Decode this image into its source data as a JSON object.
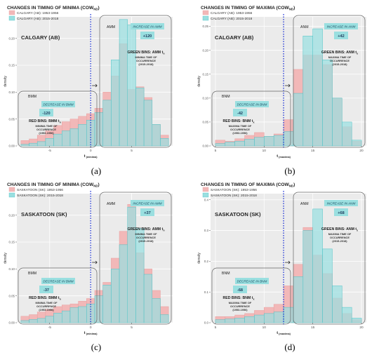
{
  "chart_data": [
    {
      "type": "bar",
      "panel_label": "(a)",
      "title": "CHANGES IN TIMING OF MINIMA (COW",
      "title_sub": "ND",
      "title_close": ")",
      "station": "CALGARY (AB)",
      "xlabel": "t",
      "xlabel_sub": "(minima)",
      "ylabel": "density",
      "xlim": [
        -9,
        10
      ],
      "ylim": [
        0,
        0.24
      ],
      "xticks": [
        -5,
        0,
        5
      ],
      "yticks": [
        0.0,
        0.05,
        0.1,
        0.15,
        0.2
      ],
      "ytick_labels": [
        "0.00",
        "0.05",
        "0.10",
        "0.15",
        "0.20"
      ],
      "vline": 0,
      "bin_start": -8.5,
      "bin_width": 1,
      "series": [
        {
          "name": "CALGARY (AB): 1953-1956",
          "color": "#f2b8b8",
          "values": [
            0.01,
            0.013,
            0.02,
            0.028,
            0.038,
            0.045,
            0.05,
            0.055,
            0.06,
            0.07,
            0.1,
            0.13,
            0.19,
            0.105,
            0.11,
            0.09,
            0.04,
            0.02
          ]
        },
        {
          "name": "CALGARY (AB): 2015-2018",
          "color": "#9adfe0",
          "values": [
            0.003,
            0.005,
            0.008,
            0.014,
            0.022,
            0.028,
            0.032,
            0.04,
            0.048,
            0.062,
            0.085,
            0.16,
            0.235,
            0.225,
            0.108,
            0.085,
            0.04,
            0.014
          ]
        }
      ],
      "regions": {
        "left": {
          "label": "BMM",
          "change_label": "DECREASE IN BMM",
          "change_value": "-120",
          "bins_title": "RED BINS: BMM t",
          "bins_sub": "n",
          "bins_desc": [
            "MINIMA TIME OF",
            "OCCURRENCE",
            "(1953-1956)"
          ]
        },
        "right": {
          "label": "AMM",
          "change_label": "INCREASE IN AMM",
          "change_value": "+120",
          "bins_title": "GREEN BINS: AMM t",
          "bins_sub": "n",
          "bins_desc": [
            "MINIMA TIME OF",
            "OCCURRENCE",
            "(2015-2018)"
          ]
        }
      }
    },
    {
      "type": "bar",
      "panel_label": "(b)",
      "title": "CHANGES IN TIMING OF MAXIMA (COW",
      "title_sub": "ND",
      "title_close": ")",
      "station": "CALGARY (AB)",
      "xlabel": "t",
      "xlabel_sub": "(maxima)",
      "ylabel": "density",
      "xlim": [
        4.5,
        20.5
      ],
      "ylim": [
        0,
        0.27
      ],
      "xticks": [
        5,
        10,
        15,
        20
      ],
      "yticks": [
        0.0,
        0.05,
        0.1,
        0.15,
        0.2,
        0.25
      ],
      "ytick_labels": [
        "0.00",
        "0.05",
        "0.10",
        "0.15",
        "0.20",
        "0.25"
      ],
      "vline": 12,
      "bin_start": 5,
      "bin_width": 1,
      "series": [
        {
          "name": "CALGARY (AB): 1953-1956",
          "color": "#f2b8b8",
          "values": [
            0.012,
            0.01,
            0.015,
            0.022,
            0.028,
            0.02,
            0.025,
            0.055,
            0.16,
            0.19,
            0.19,
            0.17,
            0.1,
            0.04,
            0.01
          ]
        },
        {
          "name": "CALGARY (AB): 2015-2018",
          "color": "#9adfe0",
          "values": [
            0.005,
            0.008,
            0.01,
            0.014,
            0.018,
            0.02,
            0.022,
            0.03,
            0.11,
            0.23,
            0.245,
            0.18,
            0.1,
            0.05,
            0.012
          ]
        }
      ],
      "regions": {
        "left": {
          "label": "BNM",
          "change_label": "DECREASE IN BNM",
          "change_value": "-42",
          "bins_title": "RED BINS: BNM t",
          "bins_sub": "x",
          "bins_desc": [
            "MAXIMA TIME OF",
            "OCCURRENCE",
            "(1953-1956)"
          ]
        },
        "right": {
          "label": "ANM",
          "change_label": "INCREASE IN ANM",
          "change_value": "+42",
          "bins_title": "GREEN BINS: ANM t",
          "bins_sub": "x",
          "bins_desc": [
            "MAXIMA TIME OF",
            "OCCURRENCE",
            "(2015-2018)"
          ]
        }
      }
    },
    {
      "type": "bar",
      "panel_label": "(c)",
      "title": "CHANGES IN TIMING OF MINIMA (COW",
      "title_sub": "ND",
      "title_close": ")",
      "station": "SASKATOON (SK)",
      "xlabel": "t",
      "xlabel_sub": "(minima)",
      "ylabel": "density",
      "xlim": [
        -9,
        10
      ],
      "ylim": [
        0,
        0.24
      ],
      "xticks": [
        -5,
        0,
        5
      ],
      "yticks": [
        0.0,
        0.05,
        0.1,
        0.15,
        0.2
      ],
      "ytick_labels": [
        "0.00",
        "0.05",
        "0.10",
        "0.15",
        "0.20"
      ],
      "vline": 0,
      "bin_start": -8.5,
      "bin_width": 1,
      "series": [
        {
          "name": "SASKATOON (SK): 1953-1956",
          "color": "#f2b8b8",
          "values": [
            0.012,
            0.015,
            0.02,
            0.025,
            0.03,
            0.033,
            0.035,
            0.04,
            0.045,
            0.06,
            0.075,
            0.12,
            0.17,
            0.22,
            0.13,
            0.1,
            0.06,
            0.03
          ]
        },
        {
          "name": "SASKATOON (SK): 2015-2018",
          "color": "#9adfe0",
          "values": [
            0.004,
            0.006,
            0.008,
            0.012,
            0.018,
            0.022,
            0.028,
            0.03,
            0.035,
            0.05,
            0.07,
            0.1,
            0.145,
            0.215,
            0.175,
            0.09,
            0.045,
            0.015
          ]
        }
      ],
      "regions": {
        "left": {
          "label": "BMM",
          "change_label": "DECREASE IN BMM",
          "change_value": "-37",
          "bins_title": "RED BINS: BMM t",
          "bins_sub": "n",
          "bins_desc": [
            "MINIMA TIME OF",
            "OCCURRENCE",
            "(1953-1956)"
          ]
        },
        "right": {
          "label": "AMM",
          "change_label": "INCREASE IN AMM",
          "change_value": "+37",
          "bins_title": "GREEN BINS: AMM t",
          "bins_sub": "n",
          "bins_desc": [
            "MINIMA TIME OF",
            "OCCURRENCE",
            "(2015-2018)"
          ]
        }
      }
    },
    {
      "type": "bar",
      "panel_label": "(d)",
      "title": "CHANGES IN TIMING OF MAXIMA (COW",
      "title_sub": "ND",
      "title_close": ")",
      "station": "SASKATOON (SK)",
      "xlabel": "t",
      "xlabel_sub": "(maxima)",
      "ylabel": "density",
      "xlim": [
        4.5,
        20.5
      ],
      "ylim": [
        0,
        0.42
      ],
      "xticks": [
        5,
        10,
        15,
        20
      ],
      "yticks": [
        0.0,
        0.1,
        0.2,
        0.3,
        0.4
      ],
      "ytick_labels": [
        "0.0",
        "0.1",
        "0.2",
        "0.3",
        "0.4"
      ],
      "vline": 12,
      "bin_start": 5,
      "bin_width": 1,
      "series": [
        {
          "name": "SASKATOON (SK): 1953-1956",
          "color": "#f2b8b8",
          "values": [
            0.02,
            0.02,
            0.025,
            0.03,
            0.04,
            0.05,
            0.06,
            0.12,
            0.19,
            0.31,
            0.22,
            0.16,
            0.08,
            0.03,
            0.01
          ]
        },
        {
          "name": "SASKATOON (SK): 2015-2018",
          "color": "#9adfe0",
          "values": [
            0.01,
            0.012,
            0.015,
            0.02,
            0.025,
            0.03,
            0.035,
            0.05,
            0.15,
            0.3,
            0.37,
            0.24,
            0.12,
            0.05,
            0.015
          ]
        }
      ],
      "regions": {
        "left": {
          "label": "BNM",
          "change_label": "DECREASE IN BNM",
          "change_value": "-68",
          "bins_title": "RED BINS: BNM t",
          "bins_sub": "x",
          "bins_desc": [
            "MAXIMA TIME OF",
            "OCCURRENCE",
            "(1953-1956)"
          ]
        },
        "right": {
          "label": "ANM",
          "change_label": "INCREASE IN ANM",
          "change_value": "+68",
          "bins_title": "GREEN BINS: ANM t",
          "bins_sub": "x",
          "bins_desc": [
            "MAXIMA TIME OF",
            "OCCURRENCE",
            "(2015-2018)"
          ]
        }
      }
    }
  ]
}
